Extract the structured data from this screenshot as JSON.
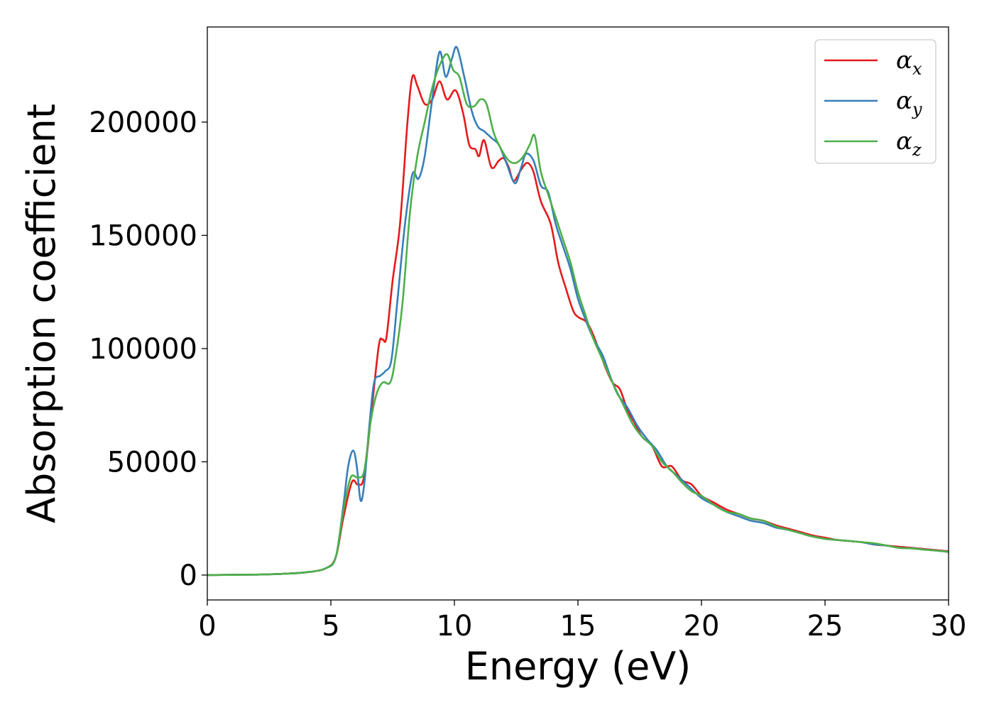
{
  "chart_data": {
    "type": "line",
    "xlabel": "Energy (eV)",
    "ylabel": "Absorption coefficient",
    "xlim": [
      0,
      30
    ],
    "ylim": [
      -11000,
      242000
    ],
    "xticks": [
      0,
      5,
      10,
      15,
      20,
      25,
      30
    ],
    "xtick_labels": [
      "0",
      "5",
      "10",
      "15",
      "20",
      "25",
      "30"
    ],
    "yticks": [
      0,
      50000,
      100000,
      150000,
      200000
    ],
    "ytick_labels": [
      "0",
      "50000",
      "100000",
      "150000",
      "200000"
    ],
    "grid": false,
    "legend": {
      "position": "top-right",
      "entries": [
        {
          "symbol": "α",
          "subscript": "x"
        },
        {
          "symbol": "α",
          "subscript": "y"
        },
        {
          "symbol": "α",
          "subscript": "z"
        }
      ]
    },
    "series": [
      {
        "color": "#e41a1c",
        "points": [
          [
            0,
            0
          ],
          [
            2,
            200
          ],
          [
            3,
            500
          ],
          [
            4,
            1200
          ],
          [
            4.8,
            3000
          ],
          [
            5.2,
            8000
          ],
          [
            5.5,
            25000
          ],
          [
            5.85,
            41000
          ],
          [
            6.1,
            40000
          ],
          [
            6.35,
            44000
          ],
          [
            6.7,
            78000
          ],
          [
            6.95,
            102000
          ],
          [
            7.1,
            104000
          ],
          [
            7.25,
            105000
          ],
          [
            7.5,
            130000
          ],
          [
            7.8,
            155000
          ],
          [
            8.1,
            200000
          ],
          [
            8.3,
            220000
          ],
          [
            8.5,
            216000
          ],
          [
            8.8,
            208000
          ],
          [
            9.1,
            210000
          ],
          [
            9.4,
            218000
          ],
          [
            9.7,
            210000
          ],
          [
            10.05,
            214000
          ],
          [
            10.35,
            204000
          ],
          [
            10.6,
            190000
          ],
          [
            10.85,
            188000
          ],
          [
            11.0,
            185000
          ],
          [
            11.2,
            192000
          ],
          [
            11.5,
            180000
          ],
          [
            11.8,
            183000
          ],
          [
            12.0,
            184000
          ],
          [
            12.2,
            180000
          ],
          [
            12.4,
            174000
          ],
          [
            12.7,
            179000
          ],
          [
            12.95,
            182000
          ],
          [
            13.2,
            178000
          ],
          [
            13.5,
            165000
          ],
          [
            13.9,
            155000
          ],
          [
            14.2,
            138000
          ],
          [
            14.5,
            127000
          ],
          [
            14.8,
            117000
          ],
          [
            15.0,
            114000
          ],
          [
            15.4,
            111000
          ],
          [
            15.8,
            101000
          ],
          [
            16.1,
            92000
          ],
          [
            16.4,
            85000
          ],
          [
            16.7,
            82000
          ],
          [
            17.0,
            73000
          ],
          [
            17.3,
            67000
          ],
          [
            17.6,
            61000
          ],
          [
            18.0,
            57000
          ],
          [
            18.4,
            48000
          ],
          [
            18.8,
            48000
          ],
          [
            19.2,
            42000
          ],
          [
            19.6,
            40000
          ],
          [
            20.0,
            35000
          ],
          [
            20.5,
            32000
          ],
          [
            21.0,
            29000
          ],
          [
            21.5,
            27000
          ],
          [
            22.0,
            25000
          ],
          [
            22.5,
            24000
          ],
          [
            23.0,
            22000
          ],
          [
            23.5,
            20500
          ],
          [
            24.0,
            19000
          ],
          [
            24.5,
            17500
          ],
          [
            25.0,
            16500
          ],
          [
            25.5,
            15500
          ],
          [
            26.0,
            15000
          ],
          [
            26.5,
            14500
          ],
          [
            27.0,
            13500
          ],
          [
            27.5,
            13000
          ],
          [
            28.0,
            12500
          ],
          [
            28.5,
            12000
          ],
          [
            29.0,
            11500
          ],
          [
            29.5,
            11000
          ],
          [
            30.0,
            10500
          ]
        ]
      },
      {
        "color": "#377eb8",
        "points": [
          [
            0,
            0
          ],
          [
            2,
            200
          ],
          [
            3,
            500
          ],
          [
            4,
            1200
          ],
          [
            4.8,
            3000
          ],
          [
            5.2,
            8000
          ],
          [
            5.5,
            30000
          ],
          [
            5.7,
            48000
          ],
          [
            5.9,
            55000
          ],
          [
            6.05,
            48000
          ],
          [
            6.2,
            33000
          ],
          [
            6.35,
            40000
          ],
          [
            6.55,
            65000
          ],
          [
            6.75,
            85000
          ],
          [
            7.0,
            88000
          ],
          [
            7.2,
            90000
          ],
          [
            7.45,
            95000
          ],
          [
            7.7,
            122000
          ],
          [
            8.0,
            155000
          ],
          [
            8.3,
            177000
          ],
          [
            8.55,
            175000
          ],
          [
            8.8,
            185000
          ],
          [
            9.1,
            210000
          ],
          [
            9.4,
            231000
          ],
          [
            9.65,
            220000
          ],
          [
            9.9,
            228000
          ],
          [
            10.1,
            233000
          ],
          [
            10.4,
            220000
          ],
          [
            10.7,
            205000
          ],
          [
            10.95,
            198000
          ],
          [
            11.2,
            196000
          ],
          [
            11.5,
            193000
          ],
          [
            11.8,
            190000
          ],
          [
            12.1,
            182000
          ],
          [
            12.45,
            173000
          ],
          [
            12.7,
            180000
          ],
          [
            12.9,
            186000
          ],
          [
            13.2,
            183000
          ],
          [
            13.5,
            172000
          ],
          [
            13.8,
            169000
          ],
          [
            14.1,
            155000
          ],
          [
            14.4,
            145000
          ],
          [
            14.7,
            135000
          ],
          [
            15.0,
            122000
          ],
          [
            15.3,
            113000
          ],
          [
            15.6,
            105000
          ],
          [
            16.0,
            97000
          ],
          [
            16.3,
            88000
          ],
          [
            16.6,
            80000
          ],
          [
            17.0,
            74000
          ],
          [
            17.4,
            66000
          ],
          [
            17.8,
            60000
          ],
          [
            18.2,
            55000
          ],
          [
            18.6,
            48000
          ],
          [
            19.0,
            44000
          ],
          [
            19.5,
            39000
          ],
          [
            20.0,
            34000
          ],
          [
            20.5,
            31000
          ],
          [
            21.0,
            28000
          ],
          [
            21.5,
            26000
          ],
          [
            22.0,
            24000
          ],
          [
            22.5,
            23000
          ],
          [
            23.0,
            21000
          ],
          [
            23.5,
            20000
          ],
          [
            24.0,
            18500
          ],
          [
            24.5,
            17000
          ],
          [
            25.0,
            16000
          ],
          [
            25.5,
            15500
          ],
          [
            26.0,
            15000
          ],
          [
            26.5,
            14500
          ],
          [
            27.0,
            13500
          ],
          [
            27.5,
            13000
          ],
          [
            28.0,
            12000
          ],
          [
            28.5,
            11800
          ],
          [
            29.0,
            11300
          ],
          [
            29.5,
            10800
          ],
          [
            30.0,
            10300
          ]
        ]
      },
      {
        "color": "#4daf4a",
        "points": [
          [
            0,
            0
          ],
          [
            2,
            200
          ],
          [
            3,
            500
          ],
          [
            4,
            1200
          ],
          [
            4.8,
            3000
          ],
          [
            5.2,
            8000
          ],
          [
            5.5,
            28000
          ],
          [
            5.8,
            43000
          ],
          [
            6.1,
            43000
          ],
          [
            6.35,
            46000
          ],
          [
            6.6,
            67000
          ],
          [
            6.85,
            80000
          ],
          [
            7.1,
            85000
          ],
          [
            7.4,
            85000
          ],
          [
            7.6,
            95000
          ],
          [
            7.9,
            120000
          ],
          [
            8.2,
            160000
          ],
          [
            8.5,
            185000
          ],
          [
            8.8,
            200000
          ],
          [
            9.1,
            215000
          ],
          [
            9.4,
            225000
          ],
          [
            9.7,
            230000
          ],
          [
            9.95,
            223000
          ],
          [
            10.2,
            220000
          ],
          [
            10.5,
            208000
          ],
          [
            10.8,
            207000
          ],
          [
            11.05,
            210000
          ],
          [
            11.3,
            208000
          ],
          [
            11.6,
            195000
          ],
          [
            11.9,
            188000
          ],
          [
            12.2,
            183000
          ],
          [
            12.5,
            182000
          ],
          [
            12.8,
            185000
          ],
          [
            13.05,
            190000
          ],
          [
            13.25,
            194000
          ],
          [
            13.5,
            178000
          ],
          [
            13.8,
            168000
          ],
          [
            14.1,
            158000
          ],
          [
            14.4,
            148000
          ],
          [
            14.7,
            138000
          ],
          [
            15.0,
            125000
          ],
          [
            15.3,
            115000
          ],
          [
            15.6,
            105000
          ],
          [
            16.0,
            95000
          ],
          [
            16.4,
            85000
          ],
          [
            16.8,
            76000
          ],
          [
            17.2,
            67000
          ],
          [
            17.6,
            61000
          ],
          [
            18.0,
            57000
          ],
          [
            18.4,
            50000
          ],
          [
            18.8,
            46000
          ],
          [
            19.2,
            41000
          ],
          [
            19.6,
            37000
          ],
          [
            20.0,
            35000
          ],
          [
            20.5,
            31000
          ],
          [
            21.0,
            28000
          ],
          [
            21.5,
            27000
          ],
          [
            22.0,
            25000
          ],
          [
            22.5,
            24000
          ],
          [
            23.0,
            21500
          ],
          [
            23.5,
            20000
          ],
          [
            24.0,
            18500
          ],
          [
            24.5,
            17000
          ],
          [
            25.0,
            16000
          ],
          [
            25.5,
            15500
          ],
          [
            26.0,
            15000
          ],
          [
            26.5,
            14500
          ],
          [
            27.0,
            14000
          ],
          [
            27.5,
            13000
          ],
          [
            28.0,
            12000
          ],
          [
            28.5,
            11800
          ],
          [
            29.0,
            11200
          ],
          [
            29.5,
            10800
          ],
          [
            30.0,
            10200
          ]
        ]
      }
    ]
  }
}
